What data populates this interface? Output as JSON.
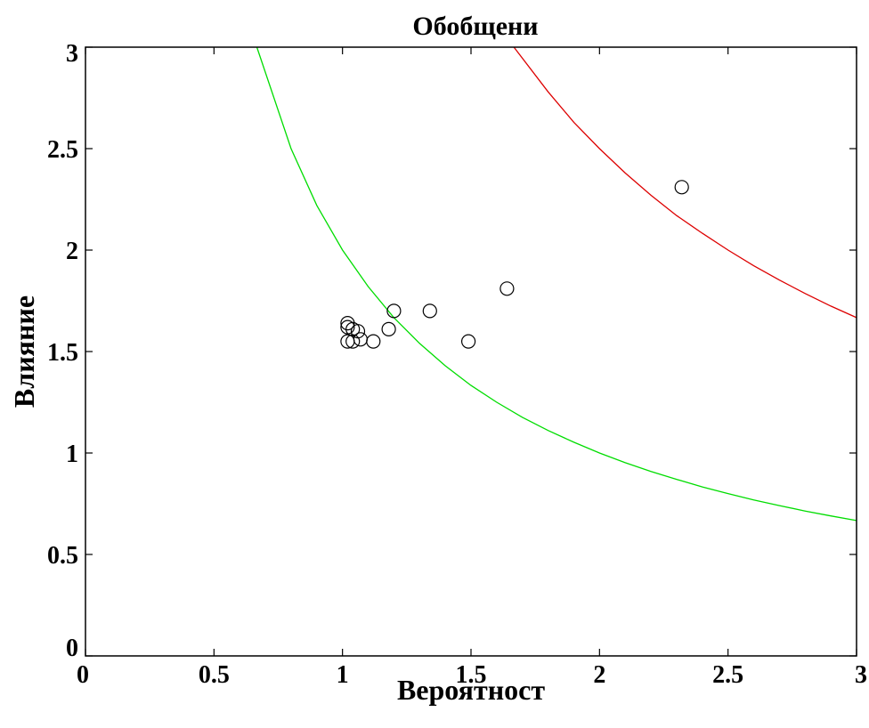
{
  "chart_data": {
    "type": "scatter",
    "title": "Обобщени",
    "xlabel": "Вероятност",
    "ylabel": "Влияние",
    "xlim": [
      0,
      3
    ],
    "ylim": [
      0,
      3
    ],
    "xticks": [
      "0",
      "0.5",
      "1",
      "1.5",
      "2",
      "2.5",
      "3"
    ],
    "yticks": [
      "0",
      "0.5",
      "1",
      "1.5",
      "2",
      "2.5",
      "3"
    ],
    "grid": false,
    "legend": "none",
    "curves": [
      {
        "color": "#00dd00",
        "points": [
          [
            0.667,
            3.0
          ],
          [
            0.8,
            2.5
          ],
          [
            0.9,
            2.22
          ],
          [
            1.0,
            2.0
          ],
          [
            1.1,
            1.82
          ],
          [
            1.2,
            1.667
          ],
          [
            1.3,
            1.54
          ],
          [
            1.4,
            1.43
          ],
          [
            1.5,
            1.333
          ],
          [
            1.6,
            1.25
          ],
          [
            1.7,
            1.176
          ],
          [
            1.8,
            1.111
          ],
          [
            1.9,
            1.053
          ],
          [
            2.0,
            1.0
          ],
          [
            2.1,
            0.952
          ],
          [
            2.2,
            0.909
          ],
          [
            2.3,
            0.87
          ],
          [
            2.4,
            0.833
          ],
          [
            2.5,
            0.8
          ],
          [
            2.6,
            0.769
          ],
          [
            2.7,
            0.741
          ],
          [
            2.8,
            0.714
          ],
          [
            2.9,
            0.69
          ],
          [
            3.0,
            0.667
          ]
        ]
      },
      {
        "color": "#dd0000",
        "points": [
          [
            1.667,
            3.0
          ],
          [
            1.8,
            2.78
          ],
          [
            1.9,
            2.63
          ],
          [
            2.0,
            2.5
          ],
          [
            2.1,
            2.38
          ],
          [
            2.2,
            2.27
          ],
          [
            2.3,
            2.17
          ],
          [
            2.4,
            2.083
          ],
          [
            2.5,
            2.0
          ],
          [
            2.6,
            1.923
          ],
          [
            2.7,
            1.852
          ],
          [
            2.8,
            1.786
          ],
          [
            2.9,
            1.724
          ],
          [
            3.0,
            1.667
          ]
        ]
      }
    ],
    "points": [
      {
        "x": 1.02,
        "y": 1.64
      },
      {
        "x": 1.02,
        "y": 1.62
      },
      {
        "x": 1.02,
        "y": 1.55
      },
      {
        "x": 1.04,
        "y": 1.61
      },
      {
        "x": 1.04,
        "y": 1.55
      },
      {
        "x": 1.06,
        "y": 1.6
      },
      {
        "x": 1.07,
        "y": 1.56
      },
      {
        "x": 1.12,
        "y": 1.55
      },
      {
        "x": 1.18,
        "y": 1.61
      },
      {
        "x": 1.2,
        "y": 1.7
      },
      {
        "x": 1.34,
        "y": 1.7
      },
      {
        "x": 1.49,
        "y": 1.55
      },
      {
        "x": 1.64,
        "y": 1.81
      },
      {
        "x": 2.32,
        "y": 2.31
      }
    ]
  }
}
